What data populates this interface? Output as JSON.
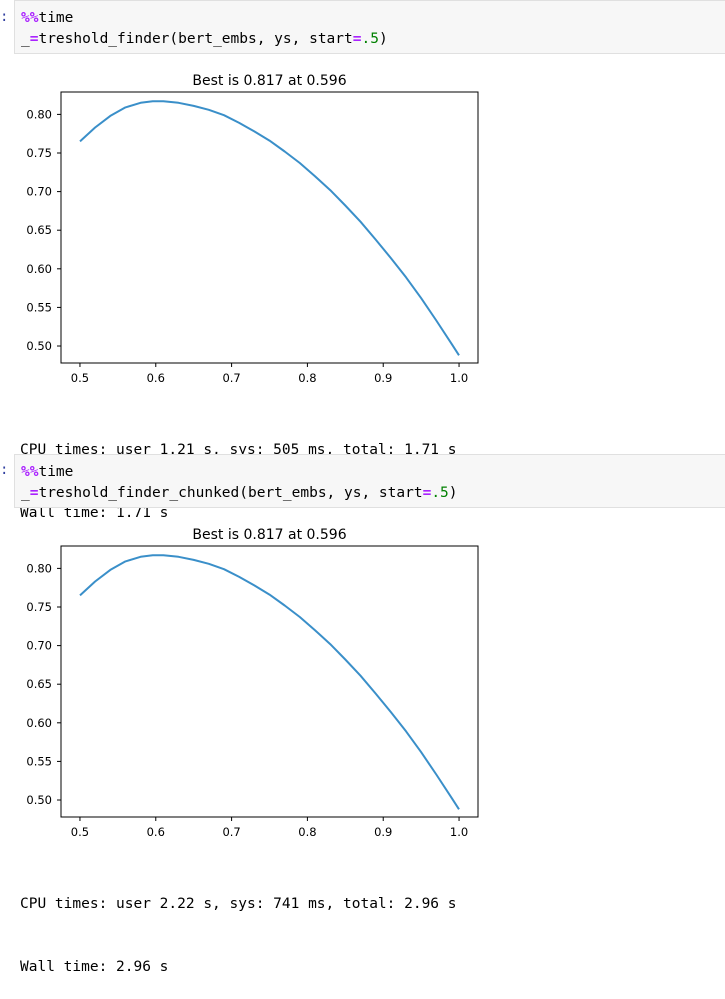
{
  "cells": [
    {
      "prompt": ":",
      "code": {
        "magic": "%%",
        "magic_name": "time",
        "var": "_",
        "op_eq": "=",
        "func": "treshold_finder(bert_embs, ys, start",
        "op_kw": "=",
        "num": ".5",
        "close": ")"
      },
      "output": {
        "cpu": "CPU times: user 1.21 s, sys: 505 ms, total: 1.71 s",
        "wall": "Wall time: 1.71 s"
      }
    },
    {
      "prompt": ":",
      "code": {
        "magic": "%%",
        "magic_name": "time",
        "var": "_",
        "op_eq": "=",
        "func": "treshold_finder_chunked(bert_embs, ys, start",
        "op_kw": "=",
        "num": ".5",
        "close": ")"
      },
      "output": {
        "cpu": "CPU times: user 2.22 s, sys: 741 ms, total: 2.96 s",
        "wall": "Wall time: 2.96 s"
      }
    }
  ],
  "chart_data": [
    {
      "type": "line",
      "title": "Best is 0.817 at 0.596",
      "xlim": [
        0.475,
        1.025
      ],
      "ylim": [
        0.478,
        0.829
      ],
      "xticks": [
        "0.5",
        "0.6",
        "0.7",
        "0.8",
        "0.9",
        "1.0"
      ],
      "yticks": [
        "0.50",
        "0.55",
        "0.60",
        "0.65",
        "0.70",
        "0.75",
        "0.80"
      ],
      "line_color": "#3a8fc9",
      "x": [
        0.5,
        0.52,
        0.54,
        0.56,
        0.58,
        0.596,
        0.61,
        0.63,
        0.65,
        0.67,
        0.69,
        0.71,
        0.73,
        0.75,
        0.77,
        0.79,
        0.81,
        0.83,
        0.85,
        0.87,
        0.89,
        0.91,
        0.93,
        0.95,
        0.97,
        0.99,
        1.0
      ],
      "y": [
        0.765,
        0.783,
        0.798,
        0.809,
        0.815,
        0.817,
        0.817,
        0.815,
        0.811,
        0.806,
        0.799,
        0.789,
        0.778,
        0.766,
        0.752,
        0.737,
        0.72,
        0.702,
        0.682,
        0.661,
        0.638,
        0.614,
        0.589,
        0.562,
        0.533,
        0.503,
        0.488
      ]
    },
    {
      "type": "line",
      "title": "Best is 0.817 at 0.596",
      "xlim": [
        0.475,
        1.025
      ],
      "ylim": [
        0.478,
        0.829
      ],
      "xticks": [
        "0.5",
        "0.6",
        "0.7",
        "0.8",
        "0.9",
        "1.0"
      ],
      "yticks": [
        "0.50",
        "0.55",
        "0.60",
        "0.65",
        "0.70",
        "0.75",
        "0.80"
      ],
      "line_color": "#3a8fc9",
      "x": [
        0.5,
        0.52,
        0.54,
        0.56,
        0.58,
        0.596,
        0.61,
        0.63,
        0.65,
        0.67,
        0.69,
        0.71,
        0.73,
        0.75,
        0.77,
        0.79,
        0.81,
        0.83,
        0.85,
        0.87,
        0.89,
        0.91,
        0.93,
        0.95,
        0.97,
        0.99,
        1.0
      ],
      "y": [
        0.765,
        0.783,
        0.798,
        0.809,
        0.815,
        0.817,
        0.817,
        0.815,
        0.811,
        0.806,
        0.799,
        0.789,
        0.778,
        0.766,
        0.752,
        0.737,
        0.72,
        0.702,
        0.682,
        0.661,
        0.638,
        0.614,
        0.589,
        0.562,
        0.533,
        0.503,
        0.488
      ]
    }
  ]
}
